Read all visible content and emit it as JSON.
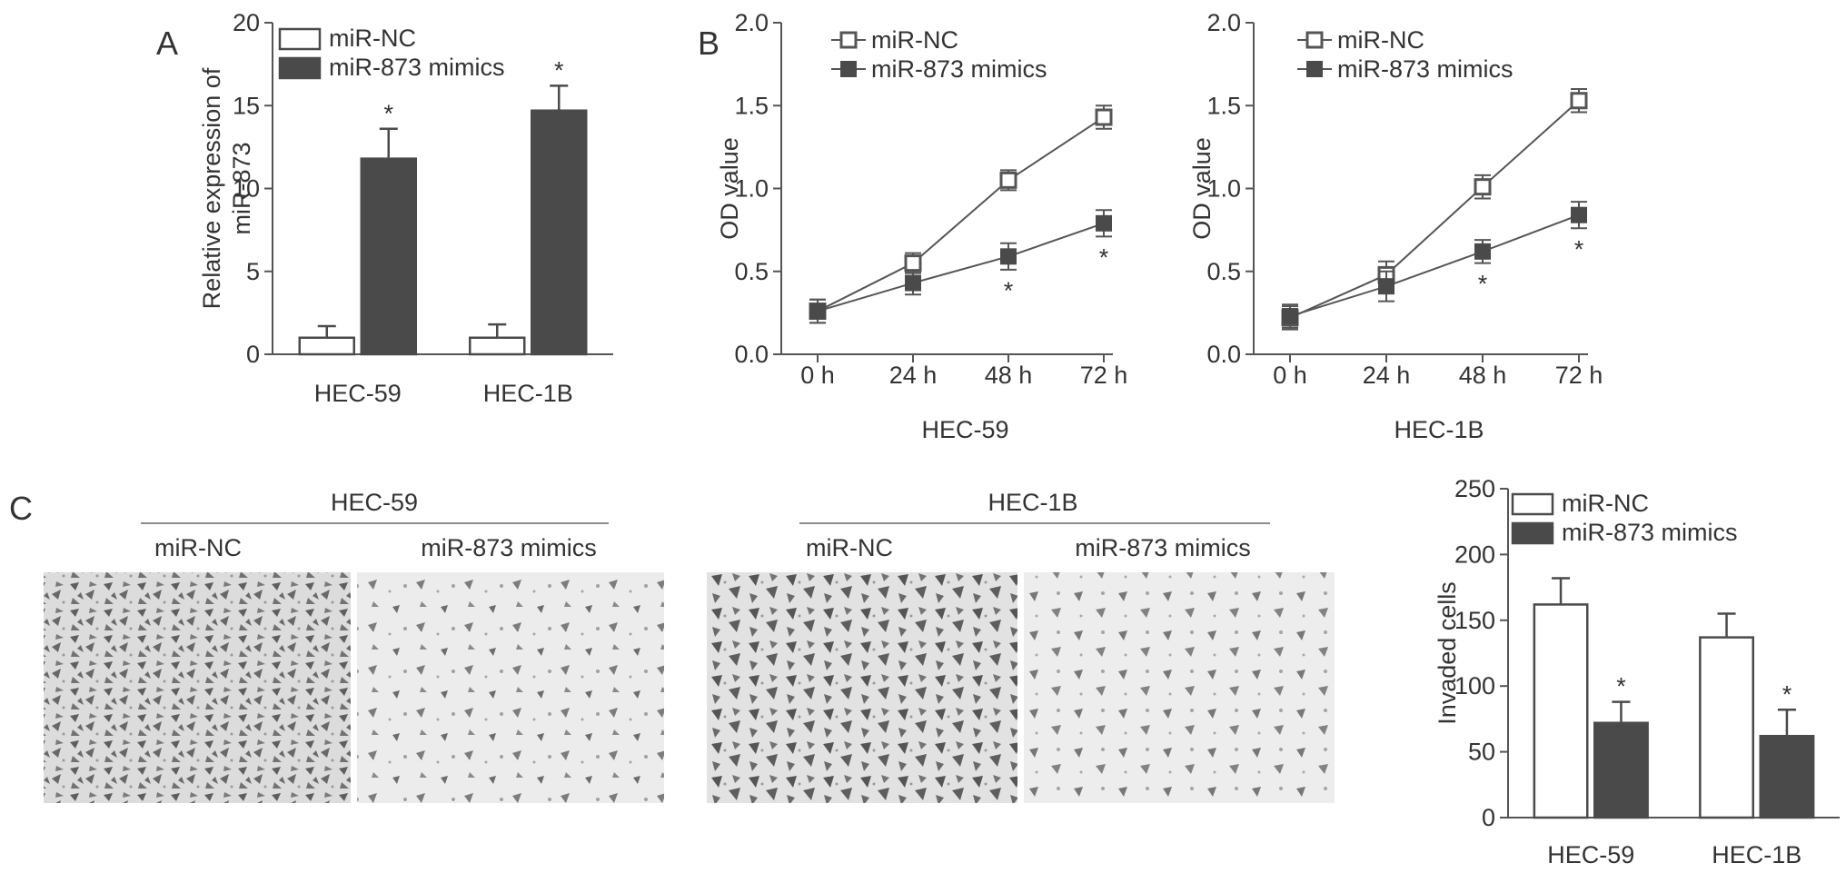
{
  "panels": {
    "a": {
      "letter": "A"
    },
    "b": {
      "letter": "B"
    },
    "c": {
      "letter": "C",
      "groups": [
        {
          "cell_line": "HEC-59",
          "left_label": "miR-NC",
          "right_label": "miR-873 mimics"
        },
        {
          "cell_line": "HEC-1B",
          "left_label": "miR-NC",
          "right_label": "miR-873 mimics"
        }
      ]
    }
  },
  "colors": {
    "nc": "#ffffff",
    "mimic": "#4a4a4a",
    "axis": "#555555",
    "text": "#333333"
  },
  "chart_data": [
    {
      "type": "bar",
      "categories": [
        "HEC-59",
        "HEC-1B"
      ],
      "ylabel": "Relative expression of miR-873",
      "ylim": [
        0,
        20
      ],
      "yticks": [
        "0",
        "5",
        "10",
        "15",
        "20"
      ],
      "legend_position": "top-left",
      "series": [
        {
          "name": "miR-NC",
          "values": [
            1.0,
            1.0
          ],
          "errors": [
            0.7,
            0.8
          ]
        },
        {
          "name": "miR-873 mimics",
          "values": [
            11.8,
            14.7
          ],
          "errors": [
            1.8,
            1.5
          ]
        }
      ],
      "significance": [
        "*",
        "*"
      ]
    },
    {
      "type": "line",
      "title": "HEC-59",
      "x": [
        "0 h",
        "24 h",
        "48 h",
        "72 h"
      ],
      "ylabel": "OD value",
      "ylim": [
        0,
        2.0
      ],
      "yticks": [
        "0.0",
        "0.5",
        "1.0",
        "1.5",
        "2.0"
      ],
      "legend_position": "top-left",
      "series": [
        {
          "name": "miR-NC",
          "values": [
            0.26,
            0.55,
            1.05,
            1.43
          ],
          "errors": [
            0.07,
            0.06,
            0.06,
            0.07
          ]
        },
        {
          "name": "miR-873 mimics",
          "values": [
            0.26,
            0.43,
            0.59,
            0.79
          ],
          "errors": [
            0.07,
            0.07,
            0.08,
            0.08
          ]
        }
      ],
      "significance": [
        "",
        "",
        "*",
        "*"
      ]
    },
    {
      "type": "line",
      "title": "HEC-1B",
      "x": [
        "0 h",
        "24 h",
        "48 h",
        "72 h"
      ],
      "ylabel": "OD value",
      "ylim": [
        0,
        2.0
      ],
      "yticks": [
        "0.0",
        "0.5",
        "1.0",
        "1.5",
        "2.0"
      ],
      "legend_position": "top-left",
      "series": [
        {
          "name": "miR-NC",
          "values": [
            0.22,
            0.48,
            1.01,
            1.53
          ],
          "errors": [
            0.07,
            0.08,
            0.07,
            0.07
          ]
        },
        {
          "name": "miR-873 mimics",
          "values": [
            0.23,
            0.41,
            0.62,
            0.84
          ],
          "errors": [
            0.07,
            0.09,
            0.07,
            0.08
          ]
        }
      ],
      "significance": [
        "",
        "",
        "*",
        "*"
      ]
    },
    {
      "type": "bar",
      "categories": [
        "HEC-59",
        "HEC-1B"
      ],
      "ylabel": "Invaded cells",
      "ylim": [
        0,
        250
      ],
      "yticks": [
        "0",
        "50",
        "100",
        "150",
        "200",
        "250"
      ],
      "legend_position": "top-left",
      "series": [
        {
          "name": "miR-NC",
          "values": [
            162,
            137
          ],
          "errors": [
            20,
            18
          ]
        },
        {
          "name": "miR-873 mimics",
          "values": [
            72,
            62
          ],
          "errors": [
            16,
            20
          ]
        }
      ],
      "significance": [
        "*",
        "*"
      ]
    }
  ]
}
